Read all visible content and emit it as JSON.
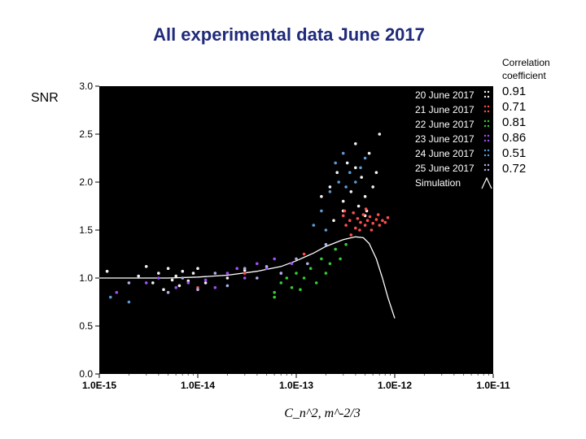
{
  "chart_data": {
    "type": "scatter",
    "title": "All experimental data June 2017",
    "ylabel": "SNR",
    "xlabel": "C_n^2, m^-2/3",
    "x_scale": "log",
    "xlim": [
      1e-15,
      1e-11
    ],
    "ylim": [
      0.0,
      3.0
    ],
    "x_tick_labels": [
      "1.0E-15",
      "1.0E-14",
      "1.0E-13",
      "1.0E-12",
      "1.0E-11"
    ],
    "y_tick_labels": [
      "0.0",
      "0.5",
      "1.0",
      "1.5",
      "2.0",
      "2.5",
      "3.0"
    ],
    "background": "#000000",
    "legend_position": "top-right",
    "legend": [
      {
        "name": "20 June 2017",
        "color": "#f2f2f2"
      },
      {
        "name": "21 June 2017",
        "color": "#ff4d4d"
      },
      {
        "name": "22 June 2017",
        "color": "#33cc33"
      },
      {
        "name": "23 June 2017",
        "color": "#a34dff"
      },
      {
        "name": "24 June 2017",
        "color": "#5b9bd5"
      },
      {
        "name": "25 June 2017",
        "color": "#b0b0e8"
      },
      {
        "name": "Simulation",
        "color": "#ffffff"
      }
    ],
    "series": [
      {
        "name": "20 June 2017",
        "color": "#f2f2f2",
        "points": [
          [
            1.2e-15,
            1.07
          ],
          [
            2.5e-15,
            1.02
          ],
          [
            3e-15,
            1.12
          ],
          [
            3.5e-15,
            0.95
          ],
          [
            4e-15,
            1.05
          ],
          [
            4.5e-15,
            0.88
          ],
          [
            5e-15,
            1.1
          ],
          [
            5.5e-15,
            0.98
          ],
          [
            6e-15,
            1.02
          ],
          [
            6.5e-15,
            0.92
          ],
          [
            7e-15,
            1.07
          ],
          [
            8e-15,
            0.97
          ],
          [
            9e-15,
            1.05
          ],
          [
            1e-14,
            1.1
          ],
          [
            1.2e-14,
            0.95
          ],
          [
            2e-14,
            1.0
          ],
          [
            3e-14,
            1.08
          ],
          [
            1.8e-13,
            1.85
          ],
          [
            2.2e-13,
            1.95
          ],
          [
            2.6e-13,
            2.1
          ],
          [
            3e-13,
            1.8
          ],
          [
            3.3e-13,
            2.2
          ],
          [
            3.6e-13,
            1.9
          ],
          [
            4e-13,
            2.4
          ],
          [
            4.3e-13,
            1.75
          ],
          [
            4.6e-13,
            2.05
          ],
          [
            5e-13,
            1.85
          ],
          [
            5.5e-13,
            2.3
          ],
          [
            6e-13,
            1.95
          ],
          [
            6.5e-13,
            2.1
          ],
          [
            7e-13,
            2.5
          ],
          [
            3e-13,
            1.7
          ],
          [
            5e-13,
            1.65
          ],
          [
            4e-13,
            2.15
          ],
          [
            2.4e-13,
            1.6
          ],
          [
            5.2e-13,
            1.7
          ]
        ]
      },
      {
        "name": "21 June 2017",
        "color": "#ff4d4d",
        "points": [
          [
            1e-14,
            0.9
          ],
          [
            3e-14,
            1.05
          ],
          [
            1.2e-13,
            1.25
          ],
          [
            3e-13,
            1.65
          ],
          [
            3.2e-13,
            1.55
          ],
          [
            3.5e-13,
            1.6
          ],
          [
            3.8e-13,
            1.68
          ],
          [
            4e-13,
            1.52
          ],
          [
            4.2e-13,
            1.62
          ],
          [
            4.5e-13,
            1.58
          ],
          [
            4.8e-13,
            1.66
          ],
          [
            5e-13,
            1.55
          ],
          [
            5.3e-13,
            1.6
          ],
          [
            5.6e-13,
            1.64
          ],
          [
            6e-13,
            1.57
          ],
          [
            6.5e-13,
            1.61
          ],
          [
            7e-13,
            1.55
          ],
          [
            7.5e-13,
            1.6
          ],
          [
            8e-13,
            1.58
          ],
          [
            8.5e-13,
            1.63
          ],
          [
            3.6e-13,
            1.45
          ],
          [
            4.4e-13,
            1.5
          ],
          [
            5.8e-13,
            1.5
          ],
          [
            6.8e-13,
            1.66
          ],
          [
            3.1e-13,
            1.7
          ],
          [
            5.1e-13,
            1.72
          ]
        ]
      },
      {
        "name": "22 June 2017",
        "color": "#33cc33",
        "points": [
          [
            5e-14,
            1.1
          ],
          [
            6e-14,
            0.85
          ],
          [
            7e-14,
            0.95
          ],
          [
            8e-14,
            1.0
          ],
          [
            9e-14,
            0.9
          ],
          [
            1e-13,
            1.05
          ],
          [
            1.1e-13,
            0.88
          ],
          [
            1.2e-13,
            1.0
          ],
          [
            1.4e-13,
            1.1
          ],
          [
            1.6e-13,
            0.95
          ],
          [
            1.8e-13,
            1.2
          ],
          [
            2e-13,
            1.05
          ],
          [
            2.2e-13,
            1.15
          ],
          [
            2.5e-13,
            1.3
          ],
          [
            2.8e-13,
            1.2
          ],
          [
            3.2e-13,
            1.35
          ],
          [
            6e-14,
            0.8
          ]
        ]
      },
      {
        "name": "23 June 2017",
        "color": "#a34dff",
        "points": [
          [
            1.5e-15,
            0.85
          ],
          [
            3e-15,
            0.95
          ],
          [
            4e-15,
            1.0
          ],
          [
            6e-15,
            0.9
          ],
          [
            8e-15,
            0.95
          ],
          [
            1.2e-14,
            0.98
          ],
          [
            1.5e-14,
            0.9
          ],
          [
            2e-14,
            1.05
          ],
          [
            2.5e-14,
            1.1
          ],
          [
            3e-14,
            1.0
          ],
          [
            4e-14,
            1.15
          ],
          [
            5e-14,
            1.1
          ],
          [
            6e-14,
            1.2
          ],
          [
            7e-14,
            1.05
          ],
          [
            9e-14,
            1.15
          ]
        ]
      },
      {
        "name": "24 June 2017",
        "color": "#5b9bd5",
        "points": [
          [
            1.3e-15,
            0.8
          ],
          [
            2e-15,
            0.75
          ],
          [
            2.2e-13,
            1.9
          ],
          [
            2.5e-13,
            2.2
          ],
          [
            2.7e-13,
            2.0
          ],
          [
            3e-13,
            2.3
          ],
          [
            3.2e-13,
            1.95
          ],
          [
            3.5e-13,
            2.1
          ],
          [
            4e-13,
            2.0
          ],
          [
            4.5e-13,
            2.15
          ],
          [
            5e-13,
            2.25
          ],
          [
            1.5e-13,
            1.55
          ],
          [
            1.8e-13,
            1.7
          ],
          [
            2e-13,
            1.5
          ]
        ]
      },
      {
        "name": "25 June 2017",
        "color": "#b0b0e8",
        "points": [
          [
            2e-15,
            0.95
          ],
          [
            5e-15,
            0.85
          ],
          [
            7e-15,
            1.0
          ],
          [
            1e-14,
            0.88
          ],
          [
            1.5e-14,
            1.05
          ],
          [
            2e-14,
            0.92
          ],
          [
            3e-14,
            1.1
          ],
          [
            4e-14,
            1.0
          ],
          [
            5e-14,
            1.12
          ],
          [
            7e-14,
            1.05
          ],
          [
            1e-13,
            1.2
          ],
          [
            1.3e-13,
            1.15
          ],
          [
            2e-13,
            1.35
          ]
        ]
      }
    ],
    "simulation": {
      "name": "Simulation",
      "color": "#ffffff",
      "points": [
        [
          1e-15,
          1.0
        ],
        [
          5e-15,
          1.0
        ],
        [
          1e-14,
          1.01
        ],
        [
          2e-14,
          1.03
        ],
        [
          4e-14,
          1.07
        ],
        [
          7e-14,
          1.12
        ],
        [
          1e-13,
          1.18
        ],
        [
          1.5e-13,
          1.26
        ],
        [
          2e-13,
          1.33
        ],
        [
          3e-13,
          1.4
        ],
        [
          4e-13,
          1.43
        ],
        [
          4.8e-13,
          1.42
        ],
        [
          5.5e-13,
          1.36
        ],
        [
          6.5e-13,
          1.2
        ],
        [
          7.5e-13,
          1.0
        ],
        [
          8.5e-13,
          0.8
        ],
        [
          1e-12,
          0.58
        ]
      ]
    }
  },
  "correlation": {
    "header_lines": [
      "Correlation",
      "coefficient"
    ],
    "values": [
      "0.91",
      "0.71",
      "0.81",
      "0.86",
      "0.51",
      "0.72"
    ]
  }
}
